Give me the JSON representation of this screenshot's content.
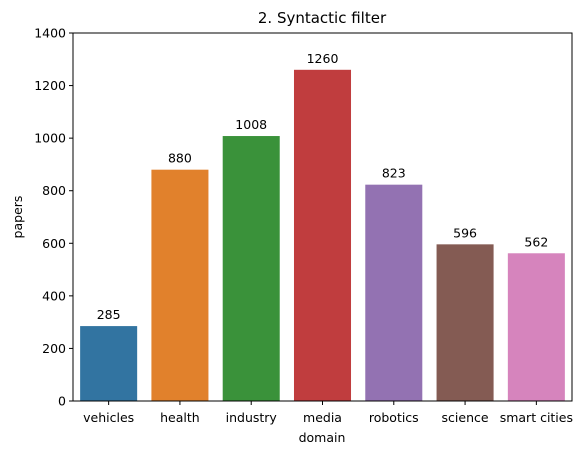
{
  "chart_data": {
    "type": "bar",
    "title": "2. Syntactic filter",
    "xlabel": "domain",
    "ylabel": "papers",
    "categories": [
      "vehicles",
      "health",
      "industry",
      "media",
      "robotics",
      "science",
      "smart cities"
    ],
    "values": [
      285,
      880,
      1008,
      1260,
      823,
      596,
      562
    ],
    "data_labels": [
      "285",
      "880",
      "1008",
      "1260",
      "823",
      "596",
      "562"
    ],
    "colors": [
      "#3274a1",
      "#e1812c",
      "#3a923a",
      "#c03d3e",
      "#9372b2",
      "#845b53",
      "#d684bd"
    ],
    "ylim": [
      0,
      1400
    ],
    "yticks": [
      0,
      200,
      400,
      600,
      800,
      1000,
      1200,
      1400
    ],
    "ytick_labels": [
      "0",
      "200",
      "400",
      "600",
      "800",
      "1000",
      "1200",
      "1400"
    ],
    "grid": false,
    "legend": "none"
  }
}
